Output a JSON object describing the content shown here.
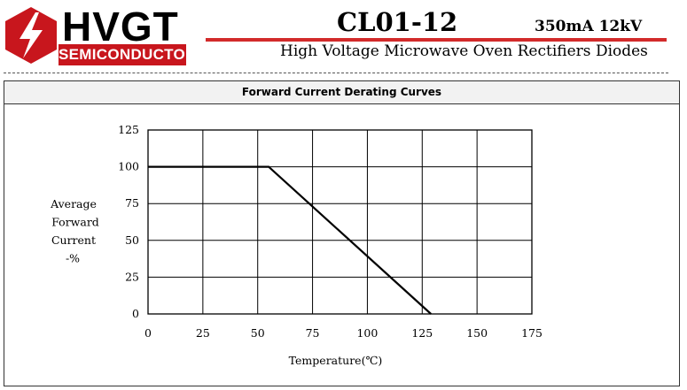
{
  "header": {
    "brand": "HVGT",
    "brand_sub": "SEMICONDUCTOR",
    "part_number": "CL01-12",
    "rating": "350mA 12kV",
    "subtitle": "High Voltage Microwave Oven Rectifiers Diodes",
    "accent_color": "#d22b2b"
  },
  "panel": {
    "title": "Forward Current Derating Curves"
  },
  "chart_data": {
    "type": "line",
    "title": "Forward Current Derating Curves",
    "xlabel": "Temperature(℃)",
    "ylabel": [
      "Average",
      "Forward",
      "Current",
      "-%"
    ],
    "xlim": [
      0,
      175
    ],
    "ylim": [
      0,
      125
    ],
    "xticks": [
      0,
      25,
      50,
      75,
      100,
      125,
      150,
      175
    ],
    "yticks": [
      0,
      25,
      50,
      75,
      100,
      125
    ],
    "grid": true,
    "series": [
      {
        "x": [
          0,
          55,
          129
        ],
        "y": [
          100,
          100,
          0
        ]
      }
    ]
  }
}
